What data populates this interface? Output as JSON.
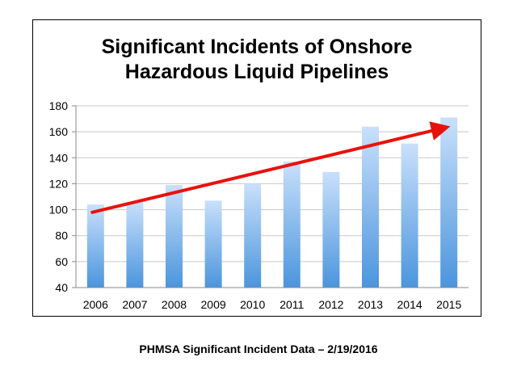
{
  "chart_data": {
    "type": "bar",
    "title_lines": [
      "Significant Incidents of Onshore",
      "Hazardous Liquid Pipelines"
    ],
    "categories": [
      "2006",
      "2007",
      "2008",
      "2009",
      "2010",
      "2011",
      "2012",
      "2013",
      "2014",
      "2015"
    ],
    "values": [
      104,
      106,
      119,
      107,
      120,
      137,
      129,
      164,
      151,
      171
    ],
    "ylim": [
      40,
      180
    ],
    "yticks": [
      "40",
      "60",
      "80",
      "100",
      "120",
      "140",
      "160",
      "180"
    ],
    "grid": true,
    "trend": {
      "from": 98,
      "to": 163
    },
    "colors": {
      "bar_top": "#c9e0fb",
      "bar_bottom": "#4b95dd",
      "trend_line": "#e8120c",
      "grid": "#c8c8c8"
    }
  },
  "caption": "PHMSA Significant Incident Data – 2/19/2016"
}
